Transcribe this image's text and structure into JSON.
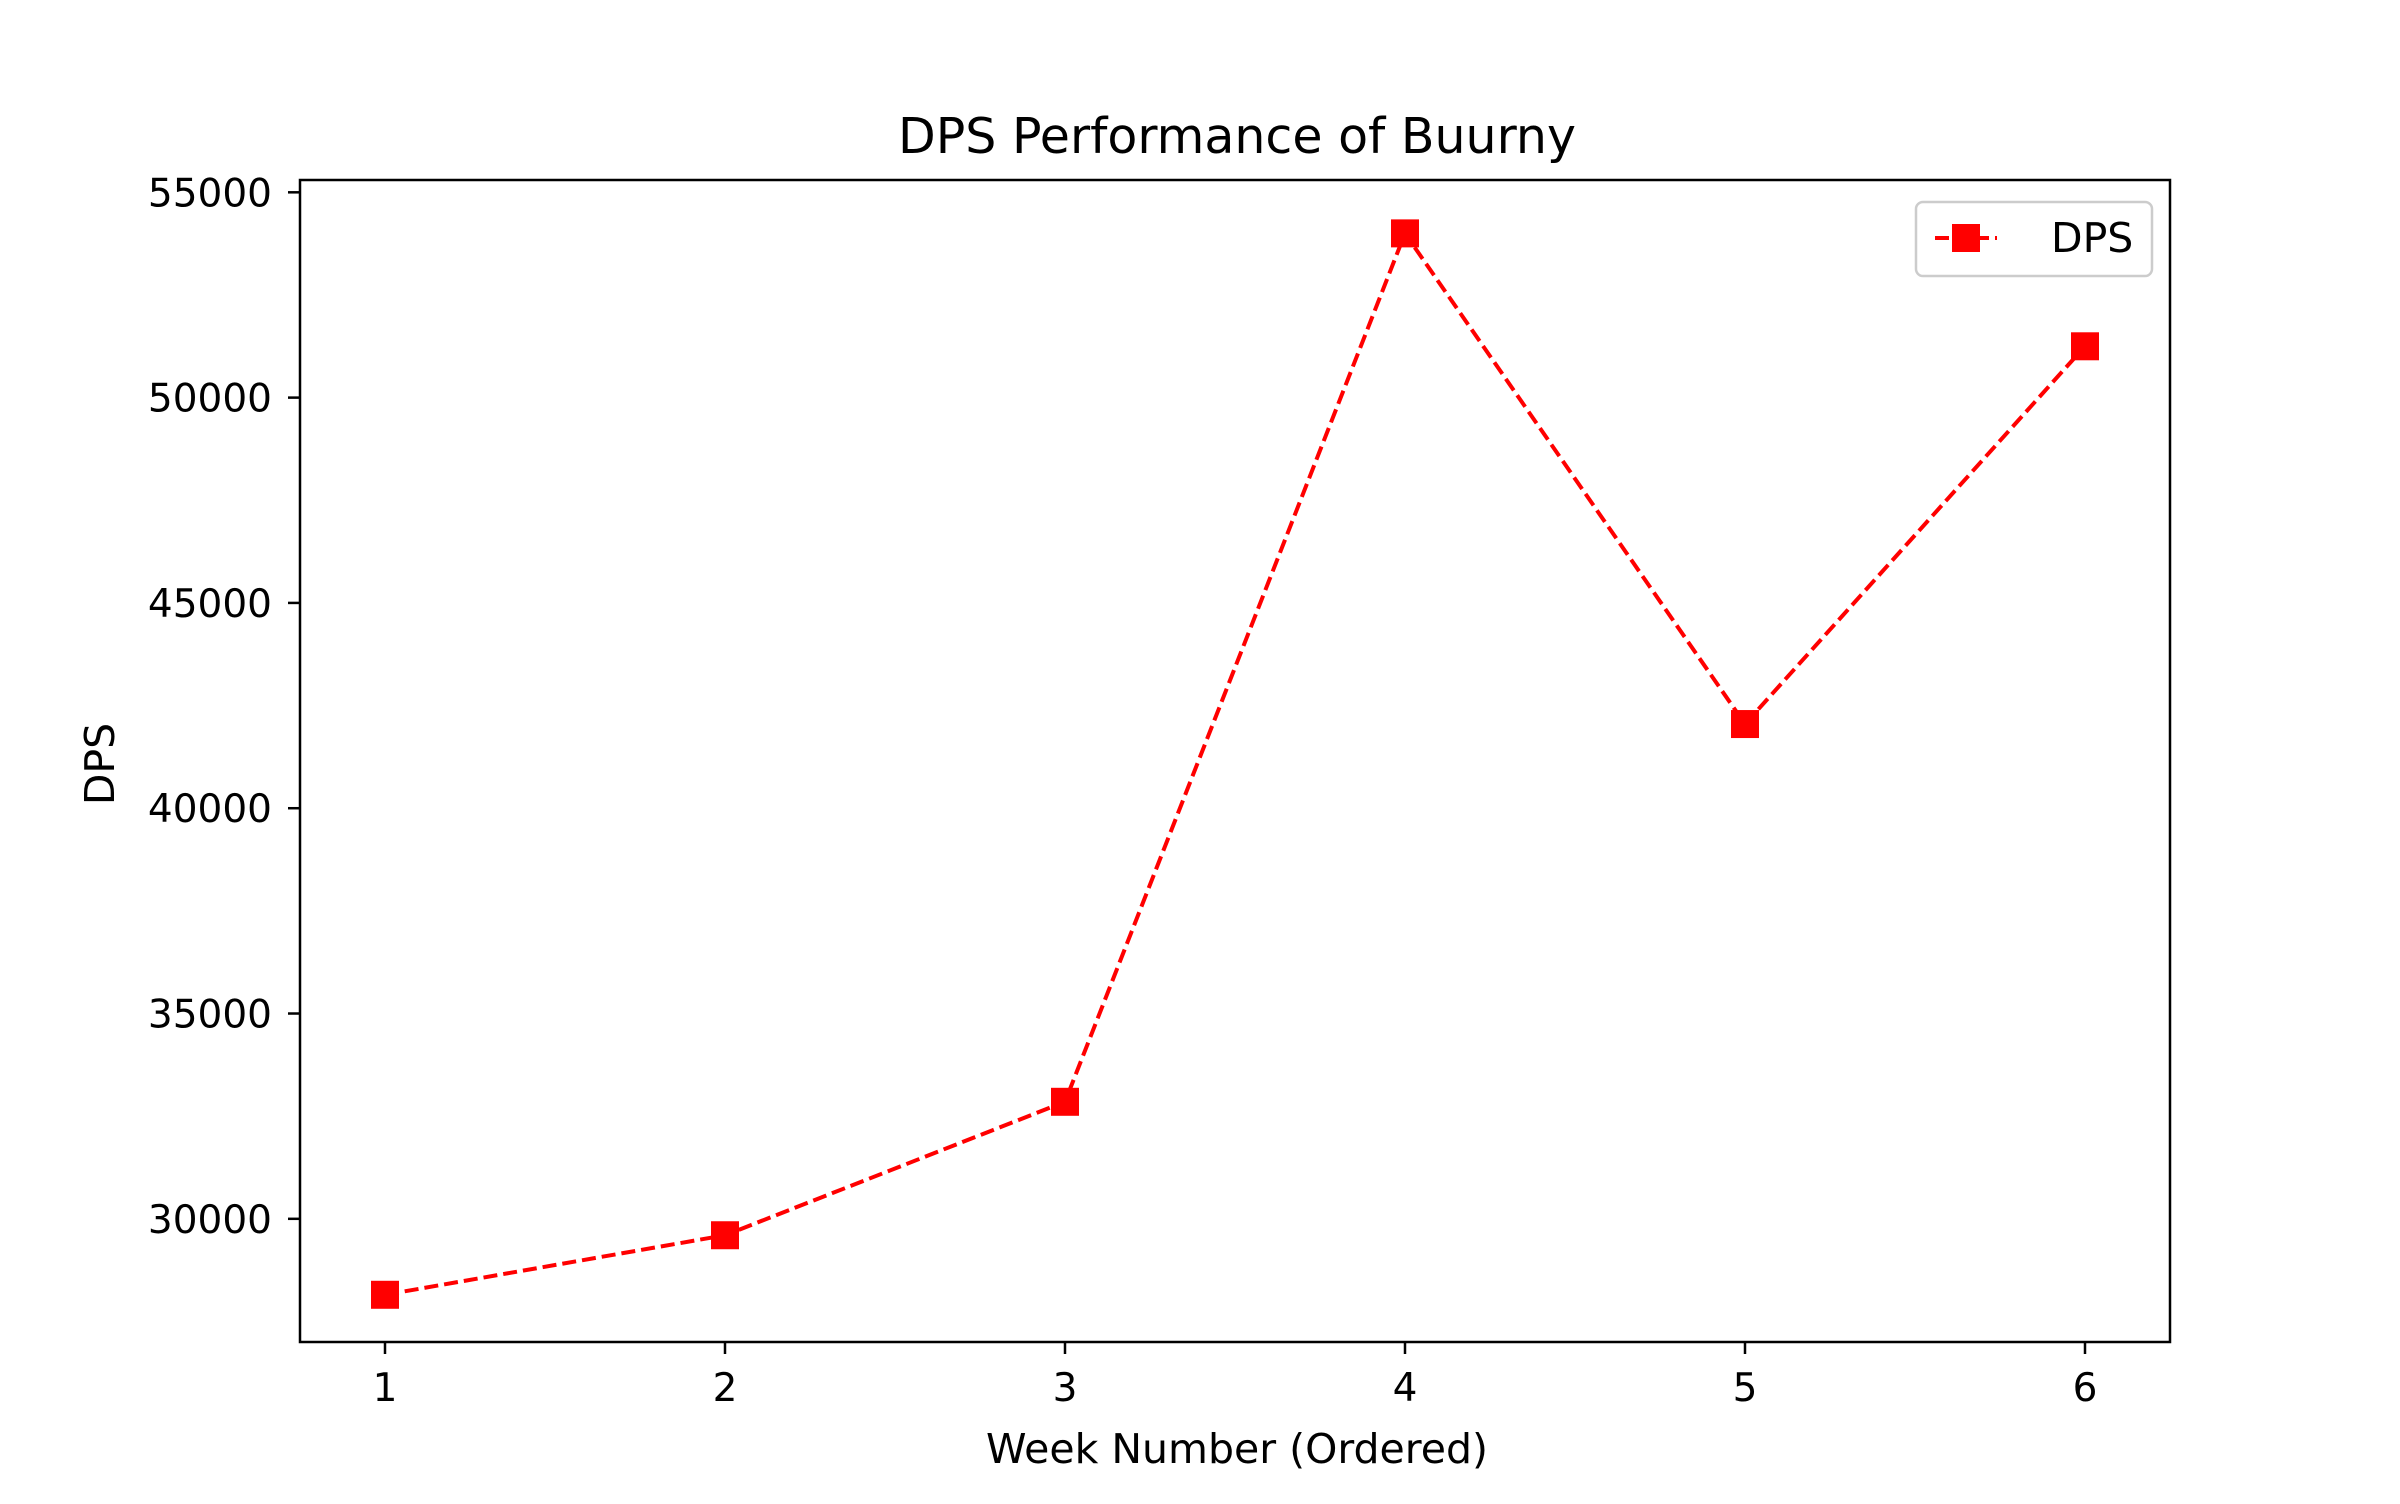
{
  "chart_data": {
    "type": "line",
    "title": "DPS Performance of Buurny",
    "xlabel": "Week Number (Ordered)",
    "ylabel": "DPS",
    "x": [
      1,
      2,
      3,
      4,
      5,
      6
    ],
    "x_ticks": [
      "1",
      "2",
      "3",
      "4",
      "5",
      "6"
    ],
    "y_ticks": [
      "30000",
      "35000",
      "40000",
      "45000",
      "50000",
      "55000"
    ],
    "xlim": [
      0.75,
      6.25
    ],
    "ylim": [
      27000,
      55300
    ],
    "grid": false,
    "legend_position": "top-right",
    "series": [
      {
        "name": "DPS",
        "values": [
          28150,
          29600,
          32850,
          54000,
          42050,
          51250
        ],
        "color": "#ff0000",
        "line_style": "dashed",
        "marker": "square"
      }
    ]
  }
}
